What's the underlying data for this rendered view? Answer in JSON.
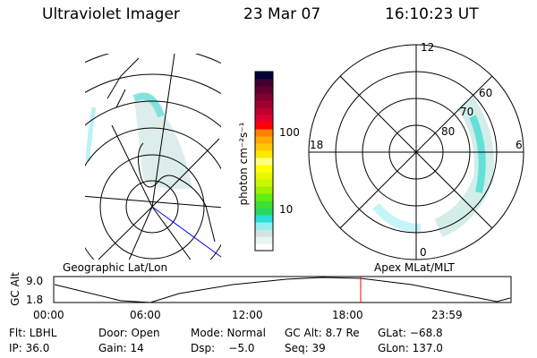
{
  "header": {
    "instrument": "Ultraviolet Imager",
    "date": "23 Mar 07",
    "time": "16:10:23 UT"
  },
  "colorbar": {
    "label": "photon cm⁻²s⁻¹",
    "scale": "log",
    "ticks": [
      "10",
      "100"
    ],
    "colors": [
      "#ffffff",
      "#e8f4ee",
      "#d0e4e2",
      "#90eef4",
      "#28e0d8",
      "#28d860",
      "#40e030",
      "#60f010",
      "#a0f000",
      "#c8f800",
      "#e8f800",
      "#ffff00",
      "#ffff80",
      "#ffe800",
      "#ffc800",
      "#ffa800",
      "#ff8000",
      "#ff0000",
      "#e00030",
      "#c00030",
      "#a00030",
      "#800030",
      "#600030",
      "#400030",
      "#000038"
    ]
  },
  "left_map": {
    "label": "Geographic Lat/Lon"
  },
  "right_map": {
    "label": "Apex MLat/MLT",
    "mlt_labels": [
      "12",
      "6",
      "0",
      "18"
    ],
    "lat_labels": [
      "60",
      "70",
      "80"
    ]
  },
  "altitude_plot": {
    "ylabel": "GC Alt",
    "yticks": [
      "9.0",
      "1.8"
    ],
    "xticks": [
      "00:00",
      "06:00",
      "12:00",
      "18:00",
      "23:59"
    ],
    "current_time_marker": "16:10:23",
    "marker_color": "#ff0000"
  },
  "status": {
    "row1": [
      "Flt: LBHL",
      "Door: Open",
      "Mode: Normal",
      "GC Alt: 8.7 Re",
      "GLat: −68.8"
    ],
    "row2": [
      "IP: 36.0",
      "Gain: 14",
      "Dsp:    −5.0",
      "Seq: 39",
      "GLon: 137.0"
    ]
  }
}
